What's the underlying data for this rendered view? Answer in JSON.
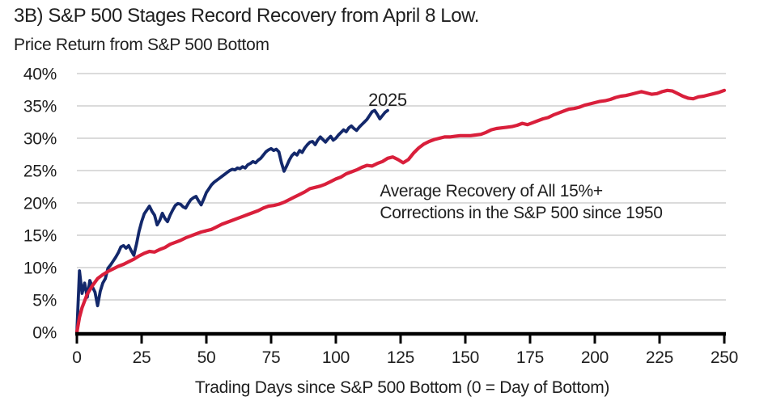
{
  "header": {
    "title": "3B) S&P 500 Stages Record Recovery from April 8 Low.",
    "subtitle": "Price Return from S&P 500 Bottom"
  },
  "chart_data": {
    "type": "line",
    "title": "3B) S&P 500 Stages Record Recovery from April 8 Low.",
    "subtitle": "Price Return from S&P 500 Bottom",
    "xlabel": "Trading Days since S&P 500 Bottom (0 = Day of Bottom)",
    "ylabel": "",
    "xlim": [
      0,
      250
    ],
    "ylim": [
      0,
      40
    ],
    "x_ticks": [
      0,
      25,
      50,
      75,
      100,
      125,
      150,
      175,
      200,
      225,
      250
    ],
    "y_ticks": [
      0,
      5,
      10,
      15,
      20,
      25,
      30,
      35,
      40
    ],
    "y_tick_suffix": "%",
    "grid": "horizontal-only",
    "legend": "none (inline text annotations)",
    "colors": {
      "line_2025": "#13286b",
      "line_average": "#d91f3b",
      "grid": "#d6d6d6",
      "axis": "#000000",
      "text": "#1f1f1f"
    },
    "annotations": [
      {
        "id": "label-2025",
        "text": "2025",
        "x_day": 120,
        "y_pct": 35.0,
        "anchor": "middle",
        "size": 22
      },
      {
        "id": "label-average-line1",
        "text": "Average Recovery of All 15%+",
        "x_day": 117,
        "y_pct": 21.0,
        "anchor": "start",
        "size": 21
      },
      {
        "id": "label-average-line2",
        "text": "Corrections in the S&P 500 since 1950",
        "x_day": 117,
        "y_pct": 17.6,
        "anchor": "start",
        "size": 21
      }
    ],
    "series": [
      {
        "name": "2025",
        "color_key": "line_2025",
        "points": [
          [
            0,
            0.0
          ],
          [
            1,
            9.5
          ],
          [
            2,
            6.0
          ],
          [
            3,
            7.6
          ],
          [
            4,
            5.4
          ],
          [
            5,
            8.0
          ],
          [
            6,
            7.0
          ],
          [
            7,
            6.2
          ],
          [
            8,
            4.1
          ],
          [
            9,
            6.3
          ],
          [
            10,
            7.6
          ],
          [
            11,
            8.3
          ],
          [
            12,
            9.9
          ],
          [
            13,
            10.4
          ],
          [
            14,
            11.0
          ],
          [
            15,
            11.6
          ],
          [
            16,
            12.3
          ],
          [
            17,
            13.2
          ],
          [
            18,
            13.4
          ],
          [
            19,
            13.0
          ],
          [
            20,
            13.4
          ],
          [
            21,
            12.6
          ],
          [
            22,
            11.9
          ],
          [
            23,
            13.6
          ],
          [
            24,
            15.6
          ],
          [
            25,
            17.1
          ],
          [
            26,
            18.3
          ],
          [
            27,
            18.9
          ],
          [
            28,
            19.5
          ],
          [
            29,
            18.7
          ],
          [
            30,
            18.1
          ],
          [
            31,
            16.6
          ],
          [
            32,
            17.3
          ],
          [
            33,
            18.4
          ],
          [
            34,
            17.6
          ],
          [
            35,
            17.1
          ],
          [
            36,
            18.1
          ],
          [
            37,
            18.9
          ],
          [
            38,
            19.6
          ],
          [
            39,
            19.9
          ],
          [
            40,
            19.8
          ],
          [
            41,
            19.4
          ],
          [
            42,
            19.2
          ],
          [
            43,
            19.9
          ],
          [
            44,
            20.5
          ],
          [
            45,
            20.8
          ],
          [
            46,
            21.0
          ],
          [
            47,
            20.3
          ],
          [
            48,
            19.7
          ],
          [
            49,
            20.6
          ],
          [
            50,
            21.6
          ],
          [
            51,
            22.2
          ],
          [
            52,
            22.8
          ],
          [
            53,
            23.2
          ],
          [
            54,
            23.5
          ],
          [
            55,
            23.8
          ],
          [
            56,
            24.1
          ],
          [
            57,
            24.4
          ],
          [
            58,
            24.7
          ],
          [
            59,
            25.0
          ],
          [
            60,
            25.2
          ],
          [
            61,
            25.1
          ],
          [
            62,
            25.4
          ],
          [
            63,
            25.3
          ],
          [
            64,
            25.6
          ],
          [
            65,
            25.4
          ],
          [
            66,
            25.9
          ],
          [
            67,
            26.1
          ],
          [
            68,
            26.4
          ],
          [
            69,
            26.2
          ],
          [
            70,
            26.6
          ],
          [
            71,
            26.9
          ],
          [
            72,
            27.4
          ],
          [
            73,
            27.9
          ],
          [
            74,
            28.2
          ],
          [
            75,
            28.4
          ],
          [
            76,
            28.1
          ],
          [
            77,
            28.3
          ],
          [
            78,
            27.9
          ],
          [
            79,
            26.2
          ],
          [
            80,
            24.9
          ],
          [
            81,
            25.7
          ],
          [
            82,
            26.6
          ],
          [
            83,
            27.3
          ],
          [
            84,
            27.7
          ],
          [
            85,
            27.4
          ],
          [
            86,
            28.1
          ],
          [
            87,
            27.8
          ],
          [
            88,
            28.5
          ],
          [
            89,
            29.0
          ],
          [
            90,
            29.4
          ],
          [
            91,
            29.5
          ],
          [
            92,
            29.0
          ],
          [
            93,
            29.7
          ],
          [
            94,
            30.2
          ],
          [
            95,
            29.8
          ],
          [
            96,
            29.4
          ],
          [
            97,
            29.9
          ],
          [
            98,
            30.3
          ],
          [
            99,
            29.7
          ],
          [
            100,
            30.0
          ],
          [
            101,
            30.5
          ],
          [
            102,
            30.9
          ],
          [
            103,
            31.3
          ],
          [
            104,
            31.0
          ],
          [
            105,
            31.6
          ],
          [
            106,
            31.9
          ],
          [
            107,
            31.5
          ],
          [
            108,
            31.2
          ],
          [
            109,
            31.7
          ],
          [
            110,
            32.1
          ],
          [
            111,
            32.5
          ],
          [
            112,
            32.9
          ],
          [
            113,
            33.5
          ],
          [
            114,
            34.1
          ],
          [
            115,
            34.3
          ],
          [
            116,
            33.7
          ],
          [
            117,
            33.0
          ],
          [
            118,
            33.5
          ],
          [
            119,
            34.0
          ],
          [
            120,
            34.3
          ]
        ]
      },
      {
        "name": "Average Recovery of All 15%+ Corrections in the S&P 500 since 1950",
        "color_key": "line_average",
        "points": [
          [
            0,
            0.0
          ],
          [
            1,
            2.3
          ],
          [
            2,
            3.8
          ],
          [
            4,
            5.9
          ],
          [
            6,
            7.2
          ],
          [
            8,
            8.3
          ],
          [
            10,
            8.9
          ],
          [
            12,
            9.4
          ],
          [
            14,
            9.8
          ],
          [
            16,
            10.2
          ],
          [
            18,
            10.5
          ],
          [
            20,
            10.9
          ],
          [
            22,
            11.3
          ],
          [
            24,
            11.8
          ],
          [
            26,
            12.2
          ],
          [
            28,
            12.5
          ],
          [
            30,
            12.4
          ],
          [
            32,
            12.8
          ],
          [
            34,
            13.1
          ],
          [
            36,
            13.6
          ],
          [
            38,
            13.9
          ],
          [
            40,
            14.2
          ],
          [
            42,
            14.6
          ],
          [
            44,
            14.9
          ],
          [
            46,
            15.2
          ],
          [
            48,
            15.5
          ],
          [
            50,
            15.7
          ],
          [
            52,
            15.9
          ],
          [
            54,
            16.3
          ],
          [
            56,
            16.7
          ],
          [
            58,
            17.0
          ],
          [
            60,
            17.3
          ],
          [
            62,
            17.6
          ],
          [
            64,
            17.9
          ],
          [
            66,
            18.2
          ],
          [
            68,
            18.5
          ],
          [
            70,
            18.8
          ],
          [
            72,
            19.2
          ],
          [
            74,
            19.5
          ],
          [
            76,
            19.6
          ],
          [
            78,
            19.8
          ],
          [
            80,
            20.1
          ],
          [
            82,
            20.5
          ],
          [
            84,
            20.9
          ],
          [
            86,
            21.3
          ],
          [
            88,
            21.7
          ],
          [
            90,
            22.2
          ],
          [
            92,
            22.4
          ],
          [
            94,
            22.6
          ],
          [
            96,
            22.9
          ],
          [
            98,
            23.3
          ],
          [
            100,
            23.7
          ],
          [
            102,
            24.0
          ],
          [
            104,
            24.5
          ],
          [
            106,
            24.8
          ],
          [
            108,
            25.1
          ],
          [
            110,
            25.5
          ],
          [
            112,
            25.8
          ],
          [
            114,
            25.7
          ],
          [
            116,
            26.1
          ],
          [
            118,
            26.4
          ],
          [
            120,
            26.9
          ],
          [
            122,
            27.1
          ],
          [
            124,
            26.7
          ],
          [
            126,
            26.2
          ],
          [
            128,
            26.7
          ],
          [
            130,
            27.7
          ],
          [
            132,
            28.5
          ],
          [
            134,
            29.1
          ],
          [
            136,
            29.5
          ],
          [
            138,
            29.8
          ],
          [
            140,
            30.0
          ],
          [
            142,
            30.2
          ],
          [
            144,
            30.2
          ],
          [
            146,
            30.3
          ],
          [
            148,
            30.4
          ],
          [
            150,
            30.4
          ],
          [
            152,
            30.4
          ],
          [
            154,
            30.5
          ],
          [
            156,
            30.6
          ],
          [
            158,
            30.9
          ],
          [
            160,
            31.3
          ],
          [
            162,
            31.5
          ],
          [
            164,
            31.6
          ],
          [
            166,
            31.7
          ],
          [
            168,
            31.8
          ],
          [
            170,
            32.0
          ],
          [
            172,
            32.3
          ],
          [
            174,
            32.1
          ],
          [
            176,
            32.4
          ],
          [
            178,
            32.7
          ],
          [
            180,
            33.0
          ],
          [
            182,
            33.2
          ],
          [
            184,
            33.6
          ],
          [
            186,
            33.9
          ],
          [
            188,
            34.2
          ],
          [
            190,
            34.5
          ],
          [
            192,
            34.6
          ],
          [
            194,
            34.8
          ],
          [
            196,
            35.1
          ],
          [
            198,
            35.3
          ],
          [
            200,
            35.5
          ],
          [
            202,
            35.7
          ],
          [
            204,
            35.8
          ],
          [
            206,
            36.0
          ],
          [
            208,
            36.3
          ],
          [
            210,
            36.5
          ],
          [
            212,
            36.6
          ],
          [
            214,
            36.8
          ],
          [
            216,
            37.0
          ],
          [
            218,
            37.2
          ],
          [
            220,
            37.0
          ],
          [
            222,
            36.8
          ],
          [
            224,
            36.9
          ],
          [
            226,
            37.2
          ],
          [
            228,
            37.4
          ],
          [
            230,
            37.3
          ],
          [
            232,
            36.9
          ],
          [
            234,
            36.5
          ],
          [
            236,
            36.2
          ],
          [
            238,
            36.1
          ],
          [
            240,
            36.4
          ],
          [
            242,
            36.5
          ],
          [
            244,
            36.7
          ],
          [
            246,
            36.9
          ],
          [
            248,
            37.1
          ],
          [
            250,
            37.4
          ]
        ]
      }
    ]
  }
}
